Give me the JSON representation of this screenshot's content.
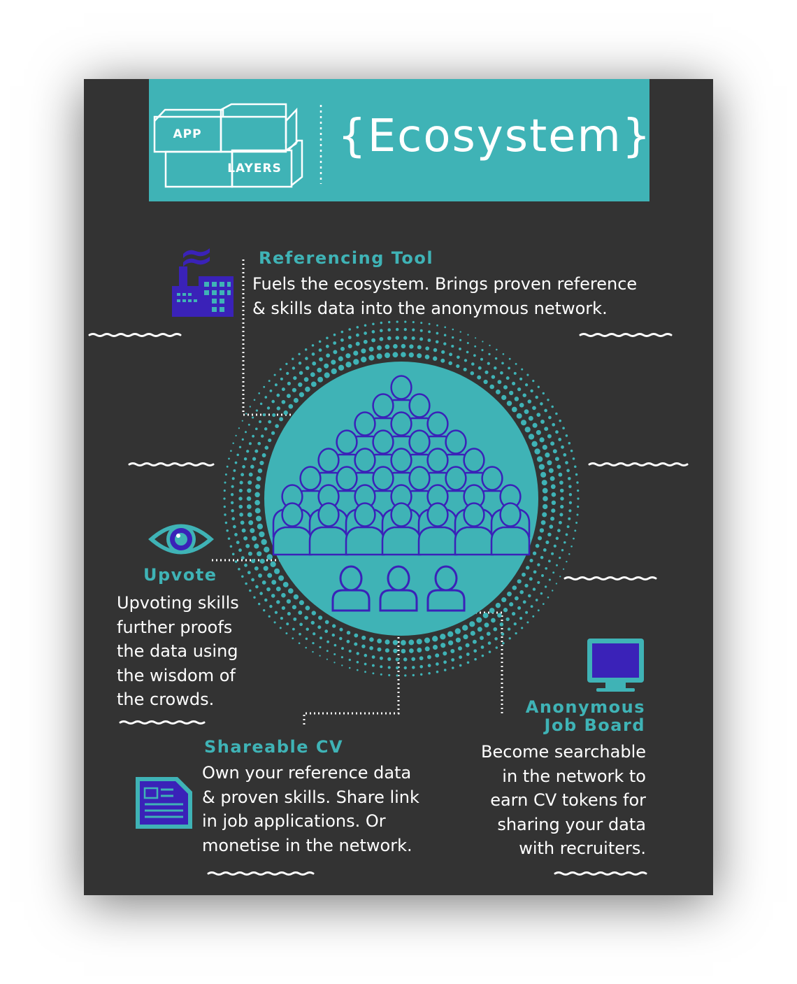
{
  "header": {
    "logo_word_1": "APP",
    "logo_word_2": "LAYERS",
    "title": "{Ecosystem}"
  },
  "sections": {
    "referencing_tool": {
      "heading": "Referencing Tool",
      "lines": [
        "Fuels the ecosystem. Brings proven reference",
        "& skills data into the anonymous network."
      ]
    },
    "upvote": {
      "heading": "Upvote",
      "lines": [
        "Upvoting  skills",
        "further proofs",
        "the data using",
        "the wisdom of",
        "the crowds."
      ]
    },
    "shareable_cv": {
      "heading": "Shareable CV",
      "lines": [
        "Own your reference data",
        "& proven skills. Share link",
        "in job applications. Or",
        "monetise in the network."
      ]
    },
    "job_board": {
      "heading_line_1": "Anonymous",
      "heading_line_2": "Job Board",
      "lines": [
        "Become searchable",
        "in the network to",
        "earn CV tokens for",
        "sharing your data",
        "with recruiters."
      ]
    }
  },
  "icons": {
    "factory": "factory-icon",
    "eye": "eye-icon",
    "document": "document-icon",
    "monitor": "monitor-icon",
    "crowd": "crowd-pyramid-icon",
    "people": "people-icon"
  },
  "colors": {
    "background": "#333333",
    "teal": "#3fb3b6",
    "purple": "#3a22b8",
    "text": "#ffffff"
  }
}
